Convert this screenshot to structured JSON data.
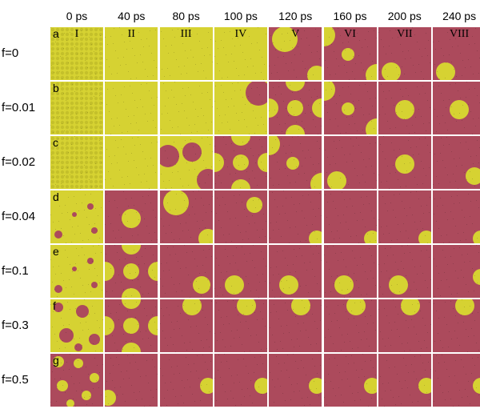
{
  "colors": {
    "yellow": "#d6d232",
    "red": "#ac4a5c"
  },
  "columns": [
    {
      "time": "0 ps",
      "roman": "I"
    },
    {
      "time": "40 ps",
      "roman": "II"
    },
    {
      "time": "80 ps",
      "roman": "III"
    },
    {
      "time": "100 ps",
      "roman": "IV"
    },
    {
      "time": "120 ps",
      "roman": "V"
    },
    {
      "time": "160 ps",
      "roman": "VI"
    },
    {
      "time": "200 ps",
      "roman": "VII"
    },
    {
      "time": "240 ps",
      "roman": "VIII"
    }
  ],
  "rows": [
    {
      "label": "f=0",
      "letter": "a"
    },
    {
      "label": "f=0.01",
      "letter": "b"
    },
    {
      "label": "f=0.02",
      "letter": "c"
    },
    {
      "label": "f=0.04",
      "letter": "d"
    },
    {
      "label": "f=0.1",
      "letter": "e"
    },
    {
      "label": "f=0.3",
      "letter": "f"
    },
    {
      "label": "f=0.5",
      "letter": "g"
    }
  ]
}
